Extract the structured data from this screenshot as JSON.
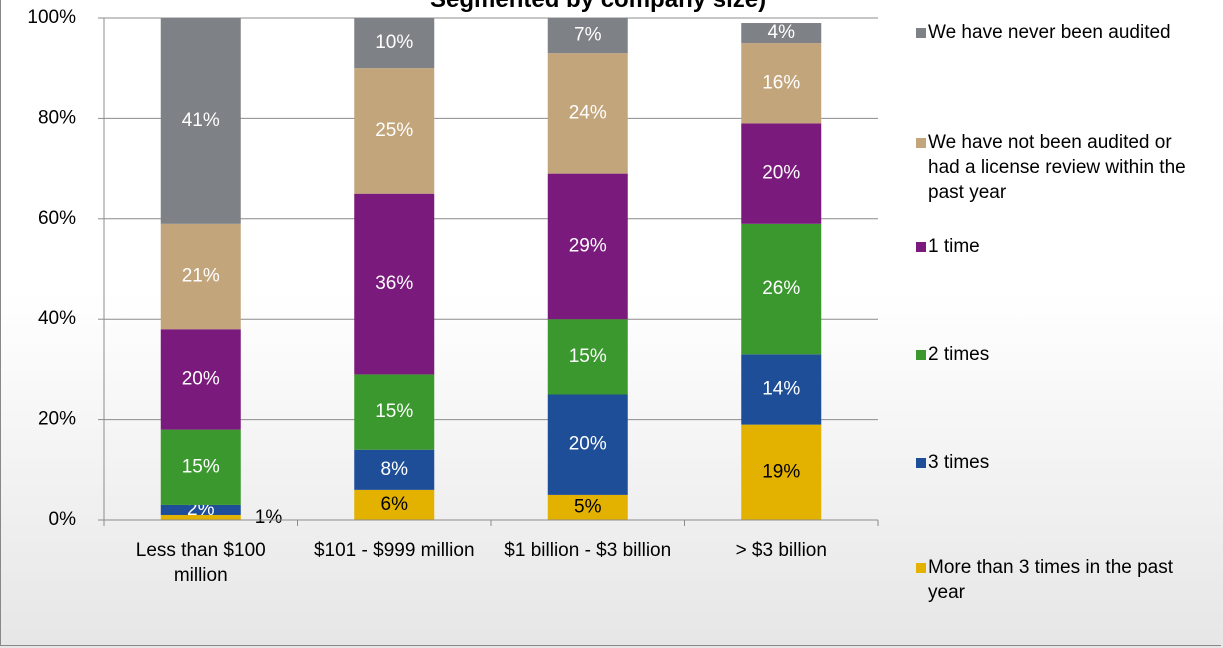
{
  "chart_data": {
    "type": "stacked_bar",
    "title": "Segmented by company size)",
    "categories": [
      "Less than $100 million",
      "$101 - $999 million",
      "$1 billion - $3 billion",
      "> $3 billion"
    ],
    "ylim": [
      0,
      100
    ],
    "yticks": [
      {
        "value": 0,
        "label": "0%"
      },
      {
        "value": 20,
        "label": "20%"
      },
      {
        "value": 40,
        "label": "40%"
      },
      {
        "value": 60,
        "label": "60%"
      },
      {
        "value": 80,
        "label": "80%"
      },
      {
        "value": 100,
        "label": "100%"
      }
    ],
    "grid": true,
    "legend": "right",
    "series": [
      {
        "name": "More than 3 times in the past year",
        "color": "#e3b100",
        "label_color": "#000000",
        "values": [
          1,
          6,
          5,
          19
        ],
        "value_labels": [
          "1%",
          "6%",
          "5%",
          "19%"
        ]
      },
      {
        "name": "3 times",
        "color": "#1f4e99",
        "label_color": "#ffffff",
        "values": [
          2,
          8,
          20,
          14
        ],
        "value_labels": [
          "2%",
          "8%",
          "20%",
          "14%"
        ]
      },
      {
        "name": "2 times",
        "color": "#3a982e",
        "label_color": "#ffffff",
        "values": [
          15,
          15,
          15,
          26
        ],
        "value_labels": [
          "15%",
          "15%",
          "15%",
          "26%"
        ]
      },
      {
        "name": "1 time",
        "color": "#7a1a7c",
        "label_color": "#ffffff",
        "values": [
          20,
          36,
          29,
          20
        ],
        "value_labels": [
          "20%",
          "36%",
          "29%",
          "20%"
        ]
      },
      {
        "name": "We have not been audited or had a license review within the past year",
        "color": "#c3a57b",
        "label_color": "#ffffff",
        "values": [
          21,
          25,
          24,
          16
        ],
        "value_labels": [
          "21%",
          "25%",
          "24%",
          "16%"
        ]
      },
      {
        "name": "We have never been audited",
        "color": "#7e8185",
        "label_color": "#ffffff",
        "values": [
          41,
          10,
          7,
          4
        ],
        "value_labels": [
          "41%",
          "10%",
          "7%",
          "4%"
        ]
      }
    ]
  }
}
